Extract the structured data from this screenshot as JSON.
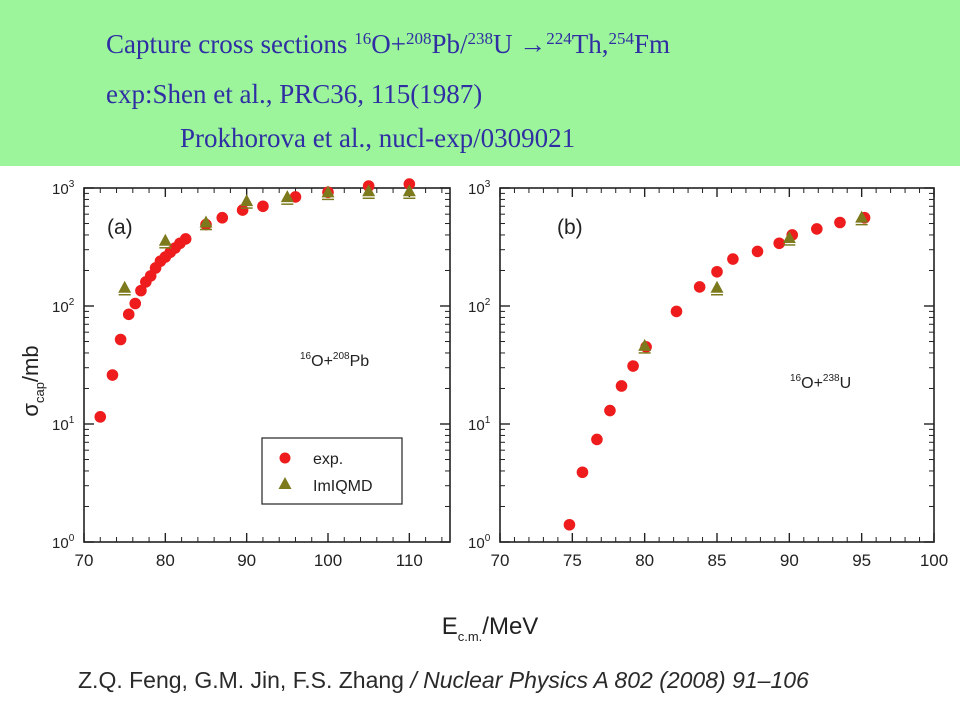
{
  "header": {
    "line1": {
      "prefix": "Capture cross sections ",
      "m1": "16",
      "s1": "O+",
      "m2": "208",
      "s2": "Pb/",
      "m3": "238",
      "s3": "U ",
      "arrow": "→",
      "m4": "224",
      "s4": "Th,",
      "m5": "254",
      "s5": "Fm"
    },
    "line2": "exp:Shen et al., PRC36, 115(1987)",
    "line3": "Prokhorova et al., nucl-exp/0309021",
    "bg_color": "#9cf59b",
    "text_color": "#2f2fa3"
  },
  "chart_data": [
    {
      "type": "scatter",
      "panel_label": "(a)",
      "reaction": {
        "m1": "16",
        "s1": "O+",
        "m2": "208",
        "s2": "Pb"
      },
      "ylabel": {
        "main": "σ",
        "sub": "cap",
        "rest": "/mb"
      },
      "xlim": [
        70,
        115
      ],
      "ylim": [
        1,
        1000
      ],
      "yscale": "log",
      "xticks": [
        70,
        80,
        90,
        100,
        110
      ],
      "yticks": [
        {
          "value": 1,
          "exp": "0"
        },
        {
          "value": 10,
          "exp": "1"
        },
        {
          "value": 100,
          "exp": "2"
        },
        {
          "value": 1000,
          "exp": "3"
        }
      ],
      "legend": {
        "placement": "bottom-right",
        "entries": [
          "exp.",
          "ImIQMD"
        ]
      },
      "series": [
        {
          "name": "exp.",
          "marker": "circle",
          "color": "#ee1c1c",
          "x": [
            72,
            73.5,
            74.5,
            75.5,
            76.3,
            77,
            77.6,
            78.2,
            78.8,
            79.4,
            80,
            80.6,
            81.2,
            81.8,
            82.5,
            85,
            87,
            89.5,
            92,
            96,
            100,
            105,
            110
          ],
          "y": [
            11.5,
            26,
            52,
            85,
            105,
            135,
            160,
            180,
            210,
            240,
            260,
            285,
            310,
            340,
            370,
            490,
            560,
            650,
            700,
            840,
            920,
            1040,
            1080
          ]
        },
        {
          "name": "ImIQMD",
          "marker": "triangle",
          "color": "#7d7a1e",
          "x": [
            75,
            80,
            85,
            90,
            95,
            100,
            105,
            110
          ],
          "y": [
            140,
            350,
            500,
            760,
            820,
            900,
            920,
            920
          ]
        }
      ]
    },
    {
      "type": "scatter",
      "panel_label": "(b)",
      "reaction": {
        "m1": "16",
        "s1": "O+",
        "m2": "238",
        "s2": "U"
      },
      "xlim": [
        70,
        100
      ],
      "ylim": [
        1,
        1000
      ],
      "yscale": "log",
      "xticks": [
        70,
        75,
        80,
        85,
        90,
        95,
        100
      ],
      "yticks": [
        {
          "value": 1,
          "exp": "0"
        },
        {
          "value": 10,
          "exp": "1"
        },
        {
          "value": 100,
          "exp": "2"
        },
        {
          "value": 1000,
          "exp": "3"
        }
      ],
      "series": [
        {
          "name": "exp.",
          "marker": "circle",
          "color": "#ee1c1c",
          "x": [
            74.8,
            75.7,
            76.7,
            77.6,
            78.4,
            79.2,
            80.1,
            82.2,
            83.8,
            85,
            86.1,
            87.8,
            89.3,
            90.2,
            91.9,
            93.5,
            95.2
          ],
          "y": [
            1.4,
            3.9,
            7.4,
            13,
            21,
            31,
            45,
            90,
            145,
            195,
            250,
            290,
            340,
            400,
            450,
            510,
            560
          ]
        },
        {
          "name": "ImIQMD",
          "marker": "triangle",
          "color": "#7d7a1e",
          "x": [
            80,
            85,
            90,
            95
          ],
          "y": [
            45,
            140,
            370,
            550
          ]
        }
      ]
    }
  ],
  "xlabel_shared": {
    "main": "E",
    "sub": "c.m.",
    "rest": "/MeV"
  },
  "citation": {
    "authors": "Z.Q. Feng, G.M. Jin, F.S. Zhang",
    "journal": "/ Nuclear Physics A 802 (2008) 91–106"
  }
}
